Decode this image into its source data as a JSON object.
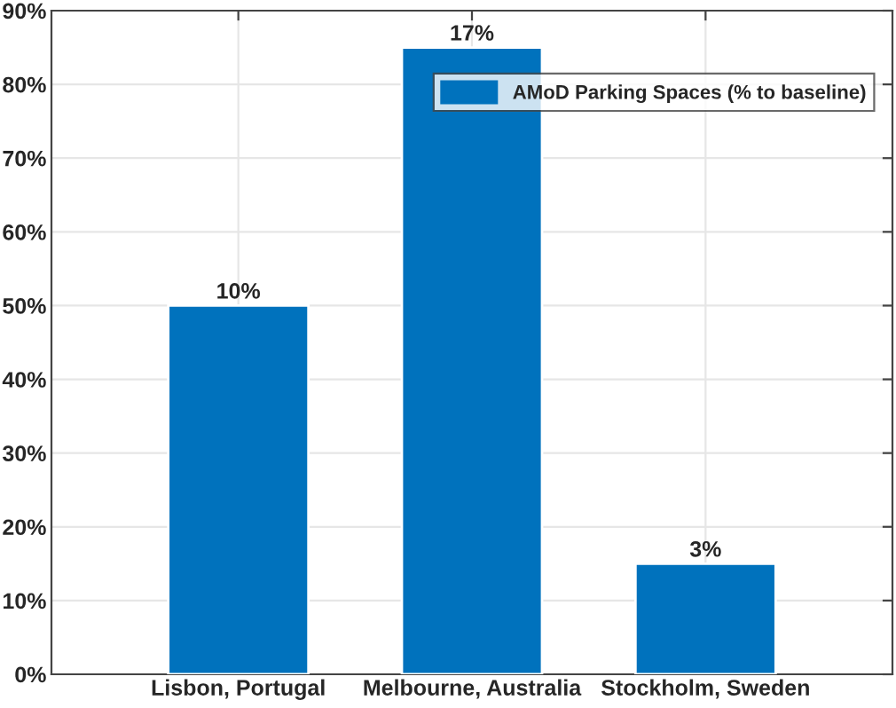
{
  "chart_data": {
    "type": "bar",
    "categories": [
      "Lisbon, Portugal",
      "Melbourne, Australia",
      "Stockholm, Sweden"
    ],
    "series": [
      {
        "name": "AMoD Parking Spaces (% to baseline)",
        "color": "#0072bd",
        "values": [
          50,
          85,
          15
        ]
      }
    ],
    "annotations": [
      {
        "text": "10%",
        "x": "Lisbon, Portugal",
        "y": 50
      },
      {
        "text": "17%",
        "x": "Melbourne, Australia",
        "y": 85
      },
      {
        "text": "3%",
        "x": "Stockholm, Sweden",
        "y": 15
      }
    ],
    "ylim": [
      0,
      90
    ],
    "yticks": [
      {
        "value": 0,
        "label": "0%"
      },
      {
        "value": 10,
        "label": "10%"
      },
      {
        "value": 20,
        "label": "20%"
      },
      {
        "value": 30,
        "label": "30%"
      },
      {
        "value": 40,
        "label": "40%"
      },
      {
        "value": 50,
        "label": "50%"
      },
      {
        "value": 60,
        "label": "60%"
      },
      {
        "value": 70,
        "label": "70%"
      },
      {
        "value": 80,
        "label": "80%"
      },
      {
        "value": 90,
        "label": "90%"
      }
    ],
    "grid": true,
    "legend": "top right"
  }
}
